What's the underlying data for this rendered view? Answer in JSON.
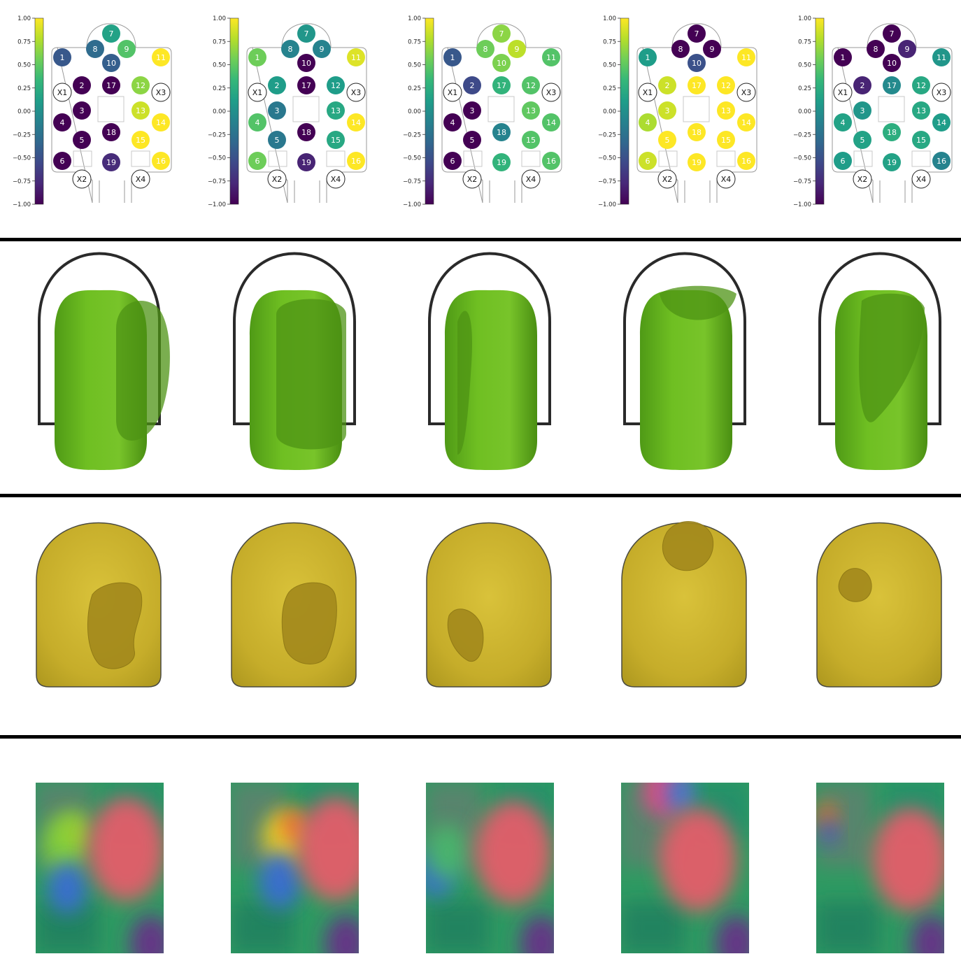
{
  "colormap": {
    "name": "viridis",
    "ticks": [
      "1.00",
      "0.75",
      "0.50",
      "0.25",
      "0.00",
      "−0.25",
      "−0.50",
      "−0.75",
      "−1.00"
    ]
  },
  "panels": [
    {
      "electrodes": {
        "1": -0.45,
        "2": -1.0,
        "3": -1.0,
        "4": -1.0,
        "5": -1.0,
        "6": -1.0,
        "7": 0.15,
        "8": -0.3,
        "9": 0.45,
        "10": -0.4,
        "11": 1.0,
        "12": 0.65,
        "13": 0.85,
        "14": 1.0,
        "15": 1.0,
        "16": 1.0,
        "17": -1.0,
        "18": -1.0,
        "19": -0.75
      },
      "sensor_shape": "cavity-left",
      "deformation_blob": "left-large"
    },
    {
      "electrodes": {
        "1": 0.55,
        "2": 0.1,
        "3": -0.2,
        "4": 0.45,
        "5": -0.2,
        "6": 0.55,
        "7": 0.05,
        "8": -0.1,
        "9": -0.1,
        "10": -1.0,
        "11": 0.9,
        "12": 0.1,
        "13": 0.2,
        "14": 1.0,
        "15": 0.2,
        "16": 1.0,
        "17": -1.0,
        "18": -1.0,
        "19": -0.8
      },
      "sensor_shape": "cavity-center",
      "deformation_blob": "center-large"
    },
    {
      "electrodes": {
        "1": -0.45,
        "2": -0.55,
        "3": -1.0,
        "4": -1.0,
        "5": -1.0,
        "6": -1.0,
        "7": 0.65,
        "8": 0.55,
        "9": 0.8,
        "10": 0.6,
        "11": 0.45,
        "12": 0.45,
        "13": 0.5,
        "14": 0.45,
        "15": 0.45,
        "16": 0.45,
        "17": 0.3,
        "18": -0.1,
        "19": 0.3
      },
      "sensor_shape": "cavity-left-edge",
      "deformation_blob": "left-edge"
    },
    {
      "electrodes": {
        "1": 0.1,
        "2": 0.85,
        "3": 0.85,
        "4": 0.75,
        "5": 1.0,
        "6": 0.85,
        "7": -1.0,
        "8": -1.0,
        "9": -1.0,
        "10": -0.5,
        "11": 1.0,
        "12": 1.0,
        "13": 1.0,
        "14": 1.0,
        "15": 1.0,
        "16": 1.0,
        "17": 1.0,
        "18": 1.0,
        "19": 1.0
      },
      "sensor_shape": "cavity-top",
      "deformation_blob": "top"
    },
    {
      "electrodes": {
        "1": -1.0,
        "2": -0.8,
        "3": 0.05,
        "4": 0.15,
        "5": 0.15,
        "6": 0.1,
        "7": -1.0,
        "8": -1.0,
        "9": -0.8,
        "10": -1.0,
        "11": 0.05,
        "12": 0.2,
        "13": 0.2,
        "14": 0.1,
        "15": 0.2,
        "16": -0.1,
        "17": -0.05,
        "18": 0.25,
        "19": 0.15
      },
      "sensor_shape": "cavity-upper-left",
      "deformation_blob": "upper-left-small"
    }
  ],
  "fixed_labels": [
    "X1",
    "X2",
    "X3",
    "X4"
  ],
  "colors": {
    "separator": "#000000",
    "finger_outline": "#2a2a2a",
    "sensor_green": "#6bb81f",
    "sensor_green_dark": "#4e9314",
    "sensor_yellow": "#c9b02a",
    "sensor_yellow_dark": "#a3891c",
    "board_outline": "#9a9a9a"
  }
}
